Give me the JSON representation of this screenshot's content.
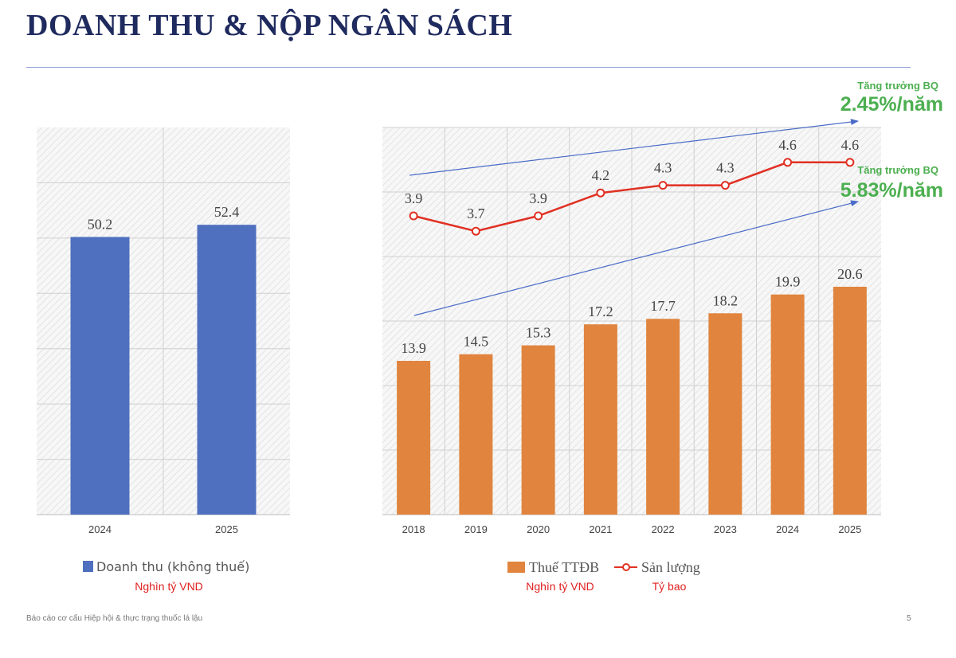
{
  "page": {
    "title": "DOANH THU & NỘP NGÂN SÁCH",
    "footer": "Báo cáo cơ cấu Hiệp hội & thực trạng thuốc lá lậu",
    "page_number": "5"
  },
  "colors": {
    "blue_bar": "#4f6fbf",
    "orange_bar": "#e0843e",
    "red_line": "#e03124",
    "growth_green": "#4caf50",
    "trend_arrow": "#4a6cc8"
  },
  "chart_data": [
    {
      "type": "bar",
      "categories": [
        "2024",
        "2025"
      ],
      "series": [
        {
          "name": "Doanh thu (không thuế)",
          "values": [
            50.2,
            52.4
          ]
        }
      ],
      "unit_note": "Nghìn tỷ VND",
      "ylim": [
        0,
        70
      ],
      "grid": true,
      "legend": "bottom"
    },
    {
      "type": "bar",
      "categories": [
        "2018",
        "2019",
        "2020",
        "2021",
        "2022",
        "2023",
        "2024",
        "2025"
      ],
      "series": [
        {
          "name": "Thuế TTĐB",
          "type": "bar",
          "values": [
            13.9,
            14.5,
            15.3,
            17.2,
            17.7,
            18.2,
            19.9,
            20.6
          ],
          "unit_note": "Nghìn tỷ VND"
        },
        {
          "name": "Sản lượng",
          "type": "line",
          "values": [
            3.9,
            3.7,
            3.9,
            4.2,
            4.3,
            4.3,
            4.6,
            4.6
          ],
          "unit_note": "Tỷ bao"
        }
      ],
      "annotations": [
        {
          "label": "Tăng trưởng BQ",
          "value": "2.45%/năm",
          "applies_to": "Sản lượng"
        },
        {
          "label": "Tăng trưởng BQ",
          "value": "5.83%/năm",
          "applies_to": "Thuế TTĐB"
        }
      ],
      "grid": true,
      "legend": "bottom"
    }
  ]
}
